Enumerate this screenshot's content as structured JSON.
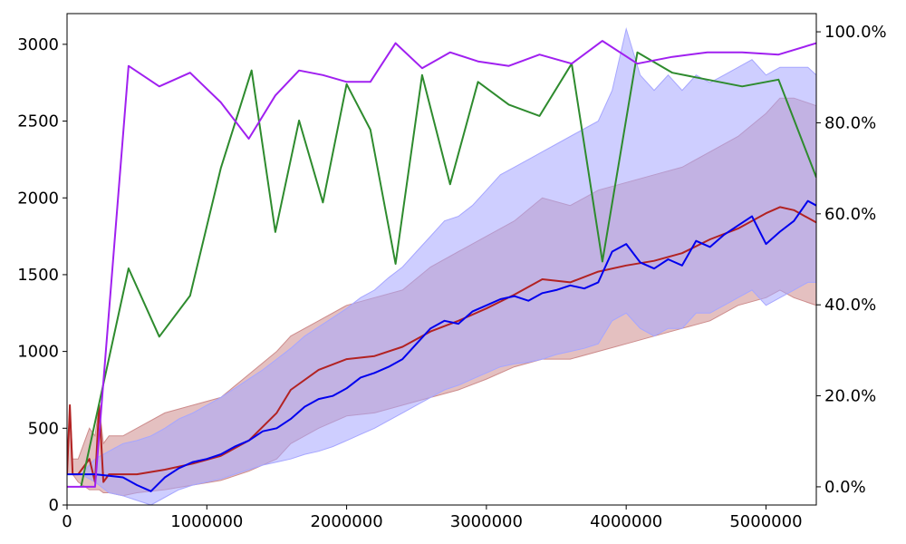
{
  "chart_data": {
    "type": "line",
    "title": "",
    "xlabel": "",
    "ylabel": "",
    "xlim": [
      0,
      5360000
    ],
    "ylim": [
      0,
      3200
    ],
    "y2lim": [
      -0.04,
      1.04
    ],
    "grid": false,
    "legend": "none",
    "x_ticks": [
      0,
      1000000,
      2000000,
      3000000,
      4000000,
      5000000
    ],
    "x_tick_labels": [
      "0",
      "1000000",
      "2000000",
      "3000000",
      "4000000",
      "5000000"
    ],
    "y_ticks": [
      0,
      500,
      1000,
      1500,
      2000,
      2500,
      3000
    ],
    "y_tick_labels": [
      "0",
      "500",
      "1000",
      "1500",
      "2000",
      "2500",
      "3000"
    ],
    "y2_ticks": [
      0.0,
      0.2,
      0.4,
      0.6,
      0.8,
      1.0
    ],
    "y2_tick_labels": [
      "0.0%",
      "20.0%",
      "40.0%",
      "60.0%",
      "80.0%",
      "100.0%"
    ],
    "series": [
      {
        "axis": "left",
        "color": "#b22222",
        "band_color": "#cd8c8c",
        "x": [
          0,
          20000,
          40000,
          80000,
          160000,
          200000,
          230000,
          260000,
          300000,
          400000,
          500000,
          700000,
          900000,
          1100000,
          1300000,
          1500000,
          1600000,
          1800000,
          2000000,
          2200000,
          2400000,
          2600000,
          2800000,
          3000000,
          3200000,
          3400000,
          3600000,
          3800000,
          4000000,
          4200000,
          4400000,
          4600000,
          4800000,
          5000000,
          5100000,
          5200000,
          5360000
        ],
        "values": [
          200,
          650,
          200,
          200,
          300,
          150,
          650,
          150,
          200,
          200,
          200,
          230,
          270,
          320,
          420,
          600,
          750,
          880,
          950,
          970,
          1030,
          1130,
          1200,
          1280,
          1370,
          1470,
          1450,
          1520,
          1560,
          1590,
          1640,
          1730,
          1800,
          1900,
          1940,
          1920,
          1840
        ],
        "band_lower": [
          200,
          200,
          200,
          150,
          100,
          100,
          100,
          80,
          80,
          60,
          80,
          100,
          130,
          160,
          220,
          300,
          400,
          500,
          580,
          600,
          650,
          700,
          750,
          820,
          900,
          950,
          950,
          1000,
          1050,
          1100,
          1150,
          1200,
          1300,
          1350,
          1400,
          1350,
          1300
        ],
        "band_upper": [
          200,
          650,
          300,
          300,
          500,
          450,
          650,
          400,
          450,
          450,
          500,
          600,
          650,
          700,
          850,
          1000,
          1100,
          1200,
          1300,
          1350,
          1400,
          1550,
          1650,
          1750,
          1850,
          2000,
          1950,
          2050,
          2100,
          2150,
          2200,
          2300,
          2400,
          2550,
          2650,
          2650,
          2600
        ]
      },
      {
        "axis": "left",
        "color": "#0000ee",
        "band_color": "#a6a6ff",
        "x": [
          0,
          100000,
          200000,
          300000,
          400000,
          500000,
          600000,
          700000,
          800000,
          900000,
          1000000,
          1100000,
          1200000,
          1300000,
          1400000,
          1500000,
          1600000,
          1700000,
          1800000,
          1900000,
          2000000,
          2100000,
          2200000,
          2300000,
          2400000,
          2500000,
          2600000,
          2700000,
          2800000,
          2900000,
          3000000,
          3100000,
          3200000,
          3300000,
          3400000,
          3500000,
          3600000,
          3700000,
          3800000,
          3900000,
          4000000,
          4100000,
          4200000,
          4300000,
          4400000,
          4500000,
          4600000,
          4700000,
          4800000,
          4900000,
          5000000,
          5100000,
          5200000,
          5300000,
          5360000
        ],
        "values": [
          200,
          200,
          200,
          190,
          180,
          130,
          90,
          180,
          240,
          280,
          300,
          330,
          380,
          420,
          480,
          500,
          560,
          640,
          690,
          710,
          760,
          830,
          860,
          900,
          950,
          1050,
          1150,
          1200,
          1180,
          1260,
          1300,
          1340,
          1360,
          1330,
          1380,
          1400,
          1430,
          1410,
          1450,
          1650,
          1700,
          1580,
          1540,
          1600,
          1560,
          1720,
          1680,
          1760,
          1820,
          1880,
          1700,
          1780,
          1850,
          1980,
          1950
        ],
        "band_lower": [
          200,
          200,
          150,
          80,
          60,
          30,
          0,
          50,
          100,
          130,
          150,
          170,
          200,
          230,
          260,
          280,
          300,
          330,
          350,
          380,
          420,
          460,
          500,
          550,
          600,
          650,
          700,
          750,
          780,
          820,
          860,
          900,
          920,
          930,
          950,
          980,
          1000,
          1020,
          1050,
          1200,
          1250,
          1150,
          1100,
          1150,
          1150,
          1250,
          1250,
          1300,
          1350,
          1400,
          1300,
          1350,
          1400,
          1450,
          1450
        ],
        "band_upper": [
          200,
          200,
          300,
          350,
          400,
          420,
          450,
          500,
          560,
          600,
          650,
          700,
          760,
          820,
          880,
          950,
          1020,
          1100,
          1160,
          1220,
          1280,
          1350,
          1400,
          1480,
          1550,
          1650,
          1750,
          1850,
          1880,
          1950,
          2050,
          2150,
          2200,
          2250,
          2300,
          2350,
          2400,
          2450,
          2500,
          2700,
          3100,
          2800,
          2700,
          2800,
          2700,
          2800,
          2750,
          2800,
          2850,
          2900,
          2800,
          2850,
          2850,
          2850,
          2800
        ]
      },
      {
        "axis": "right",
        "color": "#2e8b2e",
        "x": [
          100000,
          440000,
          660000,
          880000,
          1100000,
          1320000,
          1490000,
          1660000,
          1830000,
          2000000,
          2170000,
          2350000,
          2540000,
          2740000,
          2940000,
          3160000,
          3380000,
          3610000,
          3830000,
          4080000,
          4330000,
          4580000,
          4830000,
          5090000,
          5360000
        ],
        "values": [
          0.0,
          0.48,
          0.33,
          0.42,
          0.7,
          0.915,
          0.56,
          0.805,
          0.625,
          0.885,
          0.785,
          0.49,
          0.905,
          0.665,
          0.89,
          0.84,
          0.815,
          0.93,
          0.495,
          0.955,
          0.91,
          0.895,
          0.88,
          0.895,
          0.68
        ]
      },
      {
        "axis": "right",
        "color": "#a020f0",
        "x": [
          0,
          200000,
          440000,
          660000,
          880000,
          1100000,
          1300000,
          1490000,
          1660000,
          1830000,
          2000000,
          2170000,
          2350000,
          2540000,
          2740000,
          2940000,
          3160000,
          3380000,
          3610000,
          3830000,
          4080000,
          4330000,
          4580000,
          4830000,
          5090000,
          5360000
        ],
        "values": [
          0.0,
          0.0,
          0.925,
          0.88,
          0.91,
          0.845,
          0.765,
          0.86,
          0.915,
          0.905,
          0.89,
          0.89,
          0.975,
          0.92,
          0.955,
          0.935,
          0.925,
          0.95,
          0.93,
          0.98,
          0.93,
          0.945,
          0.955,
          0.955,
          0.95,
          0.975
        ]
      }
    ]
  }
}
